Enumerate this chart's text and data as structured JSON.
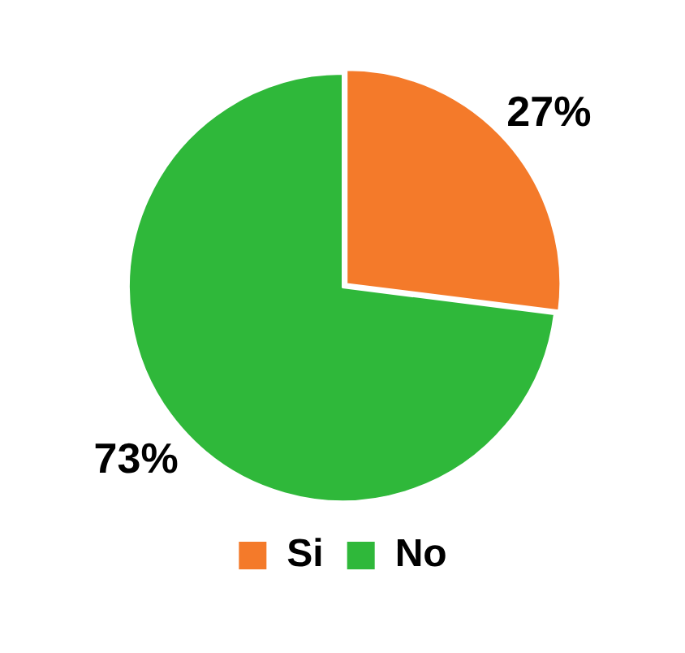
{
  "chart_data": {
    "type": "pie",
    "categories": [
      "Si",
      "No"
    ],
    "values": [
      27,
      73
    ],
    "colors": [
      "#f47a2a",
      "#2fb83a"
    ],
    "value_labels": [
      "27%",
      "73%"
    ],
    "legend": "bottom"
  }
}
